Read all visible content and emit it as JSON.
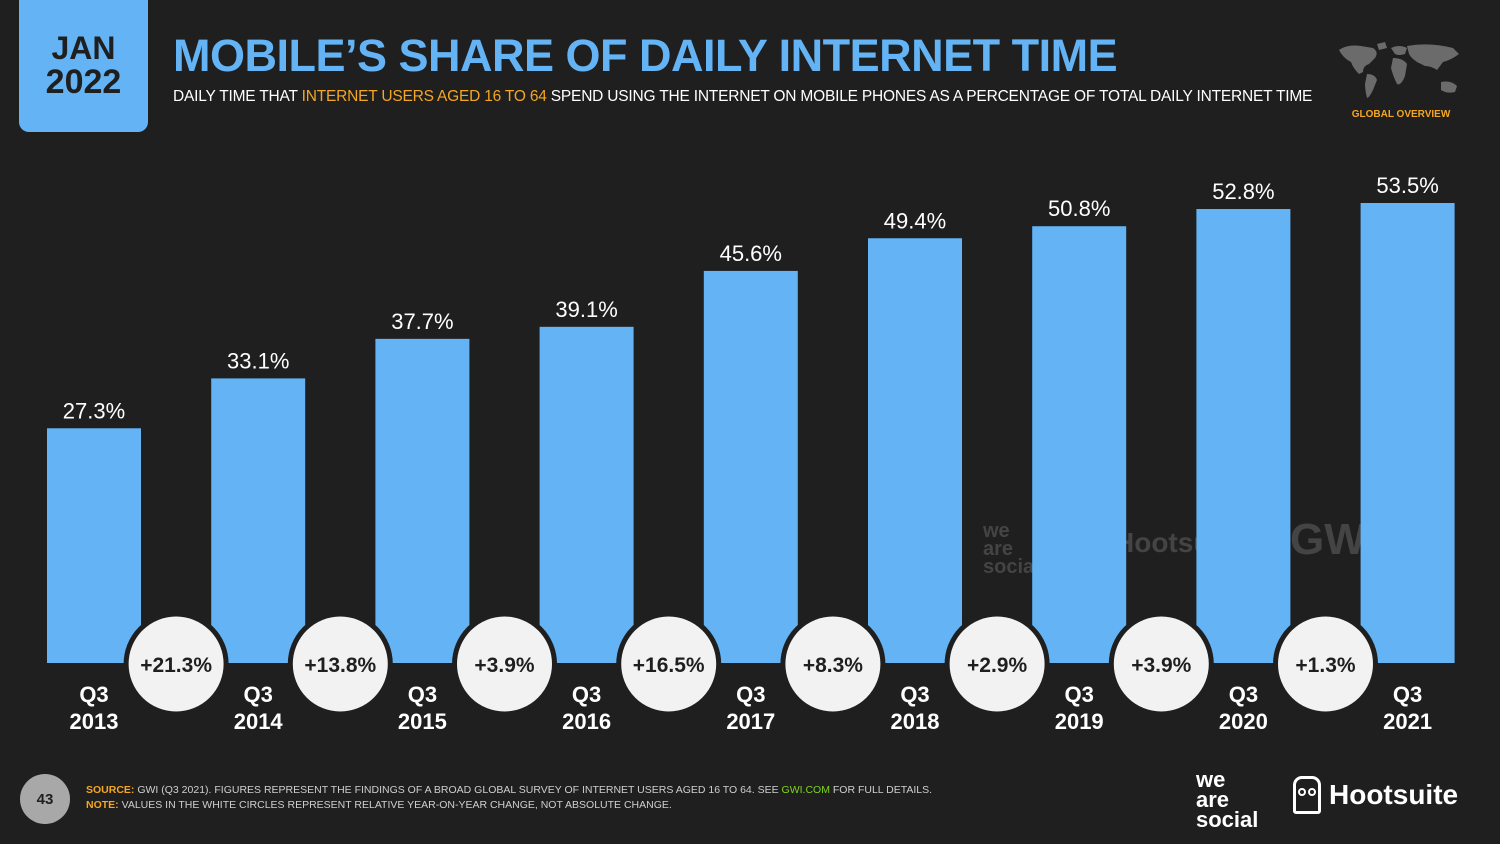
{
  "header": {
    "month": "JAN",
    "year": "2022",
    "title": "MOBILE’S SHARE OF DAILY INTERNET TIME",
    "subtitle_pre": "DAILY TIME THAT ",
    "subtitle_highlight": "INTERNET USERS AGED 16 TO 64",
    "subtitle_post": " SPEND USING THE INTERNET ON MOBILE PHONES AS A PERCENTAGE OF TOTAL DAILY INTERNET TIME",
    "region_label": "GLOBAL OVERVIEW"
  },
  "colors": {
    "background": "#1f1f1f",
    "bar": "#63b3f5",
    "accent": "#f5a623",
    "circle": "#f2f2f2"
  },
  "chart_data": {
    "type": "bar",
    "categories": [
      [
        "Q3",
        "2013"
      ],
      [
        "Q3",
        "2014"
      ],
      [
        "Q3",
        "2015"
      ],
      [
        "Q3",
        "2016"
      ],
      [
        "Q3",
        "2017"
      ],
      [
        "Q3",
        "2018"
      ],
      [
        "Q3",
        "2019"
      ],
      [
        "Q3",
        "2020"
      ],
      [
        "Q3",
        "2021"
      ]
    ],
    "values": [
      27.3,
      33.1,
      37.7,
      39.1,
      45.6,
      49.4,
      50.8,
      52.8,
      53.5
    ],
    "value_labels": [
      "27.3%",
      "33.1%",
      "37.7%",
      "39.1%",
      "45.6%",
      "49.4%",
      "50.8%",
      "52.8%",
      "53.5%"
    ],
    "change_labels": [
      "+21.3%",
      "+13.8%",
      "+3.9%",
      "+16.5%",
      "+8.3%",
      "+2.9%",
      "+3.9%",
      "+1.3%"
    ],
    "ylim": [
      0,
      60
    ],
    "grid": false,
    "legend": "none"
  },
  "watermarks": {
    "we_are_social": [
      "we",
      "are",
      "social"
    ],
    "hootsuite": "Hootsuite",
    "gwi": "GWI."
  },
  "footer": {
    "page_number": "43",
    "source_key": "SOURCE:",
    "source_text_pre": " GWI (Q3 2021). FIGURES REPRESENT THE FINDINGS OF A BROAD GLOBAL SURVEY OF INTERNET USERS AGED 16 TO 64. SEE ",
    "source_link": "GWI.COM",
    "source_text_post": " FOR FULL DETAILS.",
    "note_key": "NOTE:",
    "note_text": " VALUES IN THE WHITE CIRCLES REPRESENT RELATIVE YEAR-ON-YEAR CHANGE, NOT ABSOLUTE CHANGE.",
    "logo_was": [
      "we",
      "are",
      "social"
    ],
    "logo_hootsuite": "Hootsuite"
  }
}
